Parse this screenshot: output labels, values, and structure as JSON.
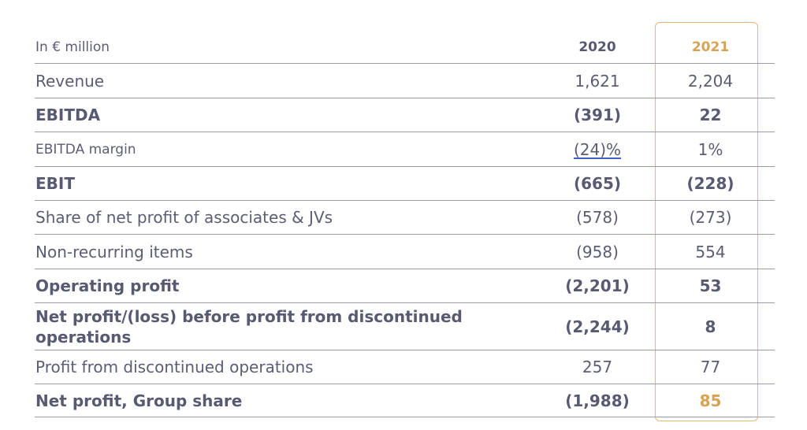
{
  "header": {
    "unit_label": "In € million",
    "col_2020": "2020",
    "col_2021": "2021"
  },
  "rows": [
    {
      "label": "Revenue",
      "v2020": "1,621",
      "v2021": "2,204",
      "bold": false
    },
    {
      "label": "EBITDA",
      "v2020": "(391)",
      "v2021": "22",
      "bold": true
    },
    {
      "label": "EBITDA margin",
      "v2020": "(24)%",
      "v2021": "1%",
      "bold": false
    },
    {
      "label": "EBIT",
      "v2020": "(665)",
      "v2021": "(228)",
      "bold": true
    },
    {
      "label": "Share of net profit of associates & JVs",
      "v2020": "(578)",
      "v2021": "(273)",
      "bold": false
    },
    {
      "label": "Non-recurring items",
      "v2020": "(958)",
      "v2021": "554",
      "bold": false
    },
    {
      "label": "Operating profit",
      "v2020": "(2,201)",
      "v2021": "53",
      "bold": true
    },
    {
      "label": "Net profit/(loss) before profit from discontinued operations",
      "v2020": "(2,244)",
      "v2021": "8",
      "bold": true
    },
    {
      "label": "Profit from discontinued operations",
      "v2020": "257",
      "v2021": "77",
      "bold": false
    },
    {
      "label": "Net profit, Group share",
      "v2020": "(1,988)",
      "v2021": "85",
      "bold": true
    }
  ],
  "colors": {
    "text": "#5b5d73",
    "accent_gold": "#d8a253",
    "highlight_border": "#e2b978",
    "rule": "#9a9cab",
    "underline": "#3f64c9"
  }
}
